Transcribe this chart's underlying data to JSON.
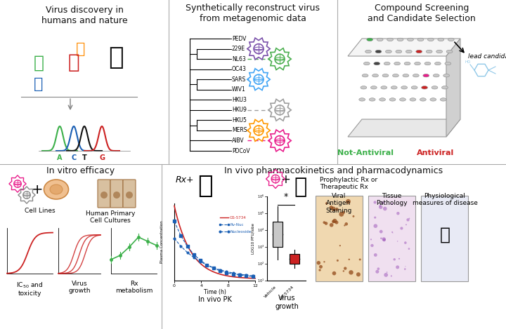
{
  "panel_titles": {
    "top_left": "Virus discovery in\nhumans and nature",
    "top_mid": "Synthetically reconstruct virus\nfrom metagenomic data",
    "top_right": "Compound Screening\nand Candidate Selection",
    "bot_left": "In vitro efficacy",
    "bot_mid": "In vivo pharmacokinetics and pharmacodynamics"
  },
  "phylo_labels": [
    "PEDV",
    "229E",
    "NL63",
    "OC43",
    "SARS",
    "WIV1",
    "HKU3",
    "HKU9",
    "HKU5",
    "MERS",
    "AIBV",
    "PDCoV"
  ],
  "phylo_virus_entries": {
    "229E": "#7b52ab",
    "NL63": "#4caf50",
    "SARS": "#42a5f5",
    "HKU9": "#9e9e9e",
    "MERS": "#ff9800",
    "AIBV": "#e91e8c"
  },
  "animal_colors": {
    "chicken": "#ff8c00",
    "pig": "#3cb04a",
    "human": "#cc2222",
    "camel": "#111111",
    "bat": "#1a5fb4"
  },
  "dna_colors": [
    "#3cb04a",
    "#1a5fb4",
    "#111111",
    "#cc2222"
  ],
  "dna_letters": [
    "A",
    "C",
    "T",
    "G"
  ],
  "not_antiviral_color": "#3cb04a",
  "antiviral_color": "#cc2222",
  "background": "#ffffff",
  "divider_color": "#aaaaaa",
  "text_color": "#111111",
  "section_title_fontsize": 9,
  "label_fontsize": 7
}
